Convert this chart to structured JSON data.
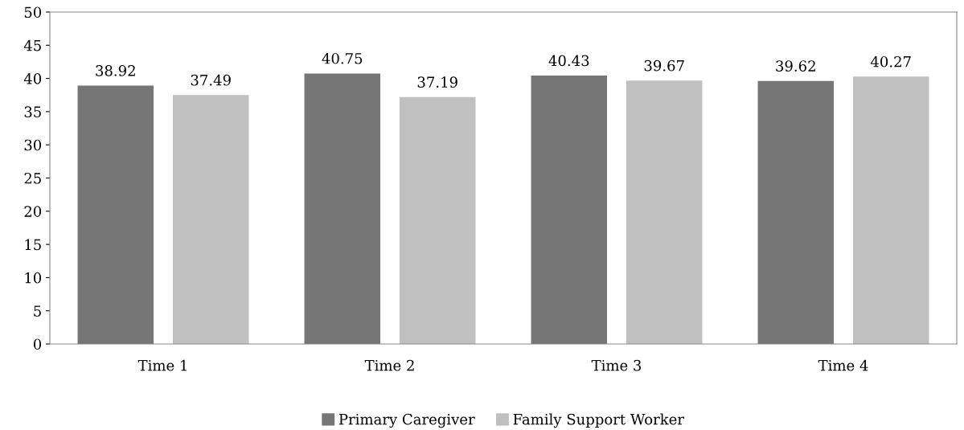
{
  "chart_data": {
    "type": "bar",
    "categories": [
      "Time 1",
      "Time 2",
      "Time 3",
      "Time 4"
    ],
    "series": [
      {
        "name": "Primary Caregiver",
        "color": "#767676",
        "values": [
          38.92,
          40.75,
          40.43,
          39.62
        ]
      },
      {
        "name": "Family Support Worker",
        "color": "#c0c0c0",
        "values": [
          37.49,
          37.19,
          39.67,
          40.27
        ]
      }
    ],
    "ylim": [
      0,
      50
    ],
    "yticks": [
      0,
      5,
      10,
      15,
      20,
      25,
      30,
      35,
      40,
      45,
      50
    ],
    "grid": false,
    "legend": "bottom",
    "data_labels": true
  }
}
